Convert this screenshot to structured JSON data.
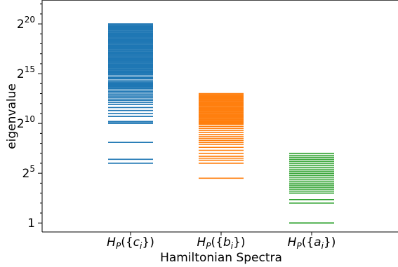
{
  "chart_data": {
    "type": "spectrum",
    "title": "",
    "xlabel": "Hamiltonian Spectra",
    "ylabel": "eigenvalue",
    "y_scale": "log2",
    "ylim_log2": [
      -0.9,
      22.4
    ],
    "y_ticks": [
      {
        "log2": 0,
        "base": "1",
        "exp": ""
      },
      {
        "log2": 5,
        "base": "2",
        "exp": "5"
      },
      {
        "log2": 10,
        "base": "2",
        "exp": "10"
      },
      {
        "log2": 15,
        "base": "2",
        "exp": "15"
      },
      {
        "log2": 20,
        "base": "2",
        "exp": "20"
      }
    ],
    "categories": [
      {
        "base": "H",
        "sub": "P",
        "open": "({",
        "var": "c",
        "vsub": "i",
        "close": "})"
      },
      {
        "base": "H",
        "sub": "P",
        "open": "({",
        "var": "b",
        "vsub": "i",
        "close": "})"
      },
      {
        "base": "H",
        "sub": "P",
        "open": "({",
        "var": "a",
        "vsub": "i",
        "close": "})"
      }
    ],
    "series": [
      {
        "color": "#1f77b4",
        "log2_eigenvalues": [
          6.0,
          6.4,
          8.1,
          10.0,
          10.15,
          10.2,
          10.7,
          11.0,
          11.3,
          11.6,
          11.9,
          12.1,
          12.3,
          12.45,
          12.6,
          12.75,
          12.9,
          13.05,
          13.2,
          13.35,
          13.5,
          13.6,
          13.7,
          13.8,
          13.9,
          14.0,
          14.1,
          14.2,
          14.35,
          14.5,
          14.6,
          14.75,
          14.9,
          15.0,
          15.1,
          15.2,
          15.3,
          15.4,
          15.5,
          15.6,
          15.7,
          15.8,
          15.9,
          16.0,
          16.1,
          16.2,
          16.3,
          16.4,
          16.5,
          16.6,
          16.7,
          16.8,
          16.9,
          17.0,
          17.1,
          17.2,
          17.3,
          17.4,
          17.5,
          17.6,
          17.7,
          17.8,
          17.9,
          18.0,
          18.1,
          18.2,
          18.3,
          18.4,
          18.5,
          18.6,
          18.7,
          18.8,
          18.9,
          19.0,
          19.1,
          19.2,
          19.3,
          19.4,
          19.5,
          19.6,
          19.7,
          19.8,
          19.9,
          20.0
        ]
      },
      {
        "color": "#ff7f0e",
        "log2_eigenvalues": [
          4.5,
          6.0,
          6.3,
          6.5,
          6.7,
          7.0,
          7.3,
          7.6,
          7.9,
          8.1,
          8.3,
          8.5,
          8.7,
          8.9,
          9.1,
          9.3,
          9.5,
          9.7,
          9.9,
          10.0,
          10.1,
          10.2,
          10.3,
          10.4,
          10.5,
          10.6,
          10.7,
          10.8,
          10.9,
          11.0,
          11.1,
          11.2,
          11.3,
          11.4,
          11.5,
          11.6,
          11.7,
          11.8,
          11.9,
          12.0,
          12.1,
          12.2,
          12.3,
          12.4,
          12.5,
          12.6,
          12.7,
          12.8,
          12.9,
          13.0
        ]
      },
      {
        "color": "#2ca02c",
        "log2_eigenvalues": [
          0.0,
          2.0,
          2.35,
          3.0,
          3.2,
          3.4,
          3.6,
          3.8,
          4.0,
          4.2,
          4.4,
          4.6,
          4.8,
          5.0,
          5.2,
          5.4,
          5.6,
          5.8,
          6.0,
          6.2,
          6.4,
          6.6,
          6.8,
          7.0
        ]
      }
    ]
  }
}
